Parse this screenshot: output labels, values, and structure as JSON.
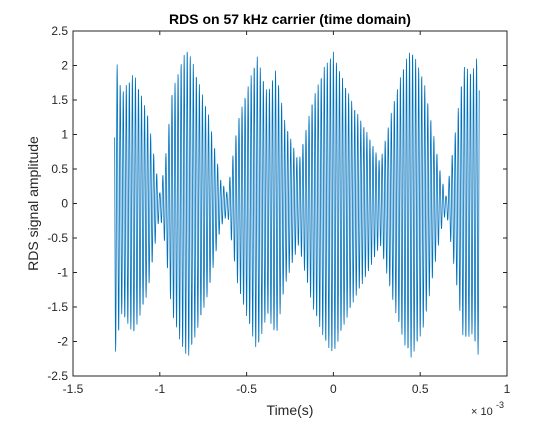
{
  "chart_data": {
    "type": "line",
    "title": "RDS on 57 kHz carrier (time domain)",
    "xlabel": "Time(s)",
    "ylabel": "RDS signal amplitude",
    "x_exponent": {
      "base": "× 10",
      "power": "-3"
    },
    "xlim": [
      -1.5,
      1.0
    ],
    "ylim": [
      -2.5,
      2.5
    ],
    "x_scale_multiplier": 0.001,
    "xticks": [
      -1.5,
      -1,
      -0.5,
      0,
      0.5,
      1
    ],
    "xtick_labels": [
      "-1.5",
      "-1",
      "-0.5",
      "0",
      "0.5",
      "1"
    ],
    "yticks": [
      -2.5,
      -2,
      -1.5,
      -1,
      -0.5,
      0,
      0.5,
      1,
      1.5,
      2,
      2.5
    ],
    "ytick_labels": [
      "-2.5",
      "-2",
      "-1.5",
      "-1",
      "-0.5",
      "0",
      "0.5",
      "1",
      "1.5",
      "2",
      "2.5"
    ],
    "grid": false,
    "series": [
      {
        "color": "#0072BD",
        "x_start": -1.26,
        "x_end": 0.84,
        "carrier_khz": 57,
        "envelope": {
          "x": [
            -1.26,
            -1.22,
            -1.15,
            -1.07,
            -1.0,
            -0.97,
            -0.93,
            -0.87,
            -0.84,
            -0.81,
            -0.72,
            -0.65,
            -0.61,
            -0.55,
            -0.44,
            -0.38,
            -0.33,
            -0.28,
            -0.2,
            -0.12,
            -0.05,
            0.0,
            0.04,
            0.12,
            0.2,
            0.27,
            0.35,
            0.41,
            0.45,
            0.52,
            0.62,
            0.65,
            0.7,
            0.75,
            0.8,
            0.84
          ],
          "amplitude": [
            2.25,
            1.6,
            1.9,
            1.3,
            0.15,
            0.6,
            1.6,
            2.1,
            2.25,
            2.05,
            1.3,
            0.35,
            0.15,
            1.2,
            2.15,
            1.6,
            1.95,
            1.2,
            0.6,
            1.5,
            2.0,
            2.2,
            1.9,
            1.4,
            1.0,
            0.6,
            1.5,
            2.05,
            2.25,
            1.8,
            0.4,
            0.1,
            1.0,
            2.0,
            1.9,
            2.25
          ]
        }
      }
    ]
  }
}
